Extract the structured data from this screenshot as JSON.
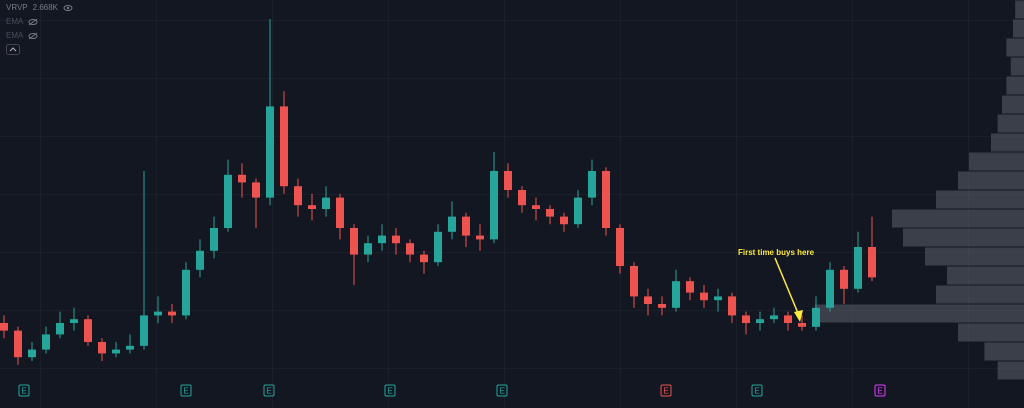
{
  "chart_data": {
    "type": "candlestick",
    "indicators": [
      {
        "name": "VRVP",
        "value": "2.668K"
      },
      {
        "name": "EMA"
      },
      {
        "name": "EMA"
      }
    ],
    "annotation": "First time buys here",
    "annotation_color": "#ffeb3b",
    "up_color": "#26a69a",
    "down_color": "#ef5350",
    "ylim": [
      0,
      100
    ],
    "open": [
      15,
      13,
      6,
      8,
      12,
      15,
      16,
      10,
      7,
      8,
      9,
      17,
      18,
      17,
      29,
      34,
      40,
      54,
      52,
      48,
      72,
      51,
      46,
      45,
      48,
      40,
      33,
      36,
      38,
      36,
      33,
      31,
      39,
      43,
      38,
      37,
      55,
      50,
      46,
      45,
      43,
      41,
      48,
      55,
      40,
      30,
      22,
      20,
      19,
      26,
      23,
      21,
      22,
      17,
      15,
      16,
      17,
      15,
      14,
      19,
      29,
      24,
      35
    ],
    "high": [
      17,
      14,
      10,
      14,
      18,
      19,
      17,
      11,
      10,
      12,
      55,
      22,
      20,
      31,
      37,
      43,
      58,
      57,
      53,
      95,
      76,
      53,
      49,
      51,
      49,
      41,
      38,
      41,
      40,
      37,
      34,
      41,
      47,
      44,
      41,
      60,
      57,
      51,
      48,
      46,
      44,
      50,
      58,
      56,
      41,
      31,
      24,
      22,
      29,
      27,
      25,
      24,
      23,
      18,
      18,
      19,
      18,
      17,
      22,
      31,
      30,
      39,
      43
    ],
    "low": [
      11,
      4,
      5,
      7,
      11,
      13,
      9,
      5,
      6,
      7,
      8,
      15,
      15,
      16,
      27,
      32,
      39,
      48,
      40,
      46,
      49,
      43,
      42,
      43,
      37,
      25,
      31,
      34,
      33,
      31,
      28,
      30,
      37,
      35,
      34,
      36,
      48,
      44,
      42,
      41,
      39,
      40,
      46,
      38,
      28,
      19,
      17,
      17,
      18,
      21,
      19,
      18,
      15,
      12,
      13,
      15,
      13,
      13,
      13,
      18,
      20,
      23,
      26
    ],
    "close": [
      13,
      6,
      8,
      12,
      15,
      16,
      10,
      7,
      8,
      9,
      17,
      18,
      17,
      29,
      34,
      40,
      54,
      52,
      48,
      72,
      51,
      46,
      45,
      48,
      40,
      33,
      36,
      38,
      36,
      33,
      31,
      39,
      43,
      38,
      37,
      55,
      50,
      46,
      45,
      43,
      41,
      48,
      55,
      40,
      30,
      22,
      20,
      19,
      26,
      23,
      21,
      22,
      17,
      15,
      16,
      17,
      15,
      14,
      19,
      29,
      24,
      35,
      27
    ],
    "volume_profile": {
      "bins": [
        0,
        5,
        10,
        15,
        20,
        25,
        30,
        35,
        40,
        45,
        50,
        55,
        60,
        65,
        70,
        75,
        80,
        85,
        90,
        95,
        100
      ],
      "values": [
        12,
        18,
        30,
        95,
        40,
        35,
        45,
        55,
        60,
        40,
        30,
        25,
        15,
        12,
        10,
        8,
        6,
        8,
        5,
        4
      ],
      "xlim": [
        0,
        100
      ],
      "color": "#5d606b"
    },
    "events": [
      {
        "label": "E",
        "color": "#26a69a"
      },
      {
        "label": "E",
        "color": "#26a69a"
      },
      {
        "label": "E",
        "color": "#26a69a"
      },
      {
        "label": "E",
        "color": "#26a69a"
      },
      {
        "label": "E",
        "color": "#26a69a"
      },
      {
        "label": "E",
        "color": "#ef5350"
      },
      {
        "label": "E",
        "color": "#26a69a"
      },
      {
        "label": "E",
        "color": "#e040fb"
      }
    ]
  }
}
